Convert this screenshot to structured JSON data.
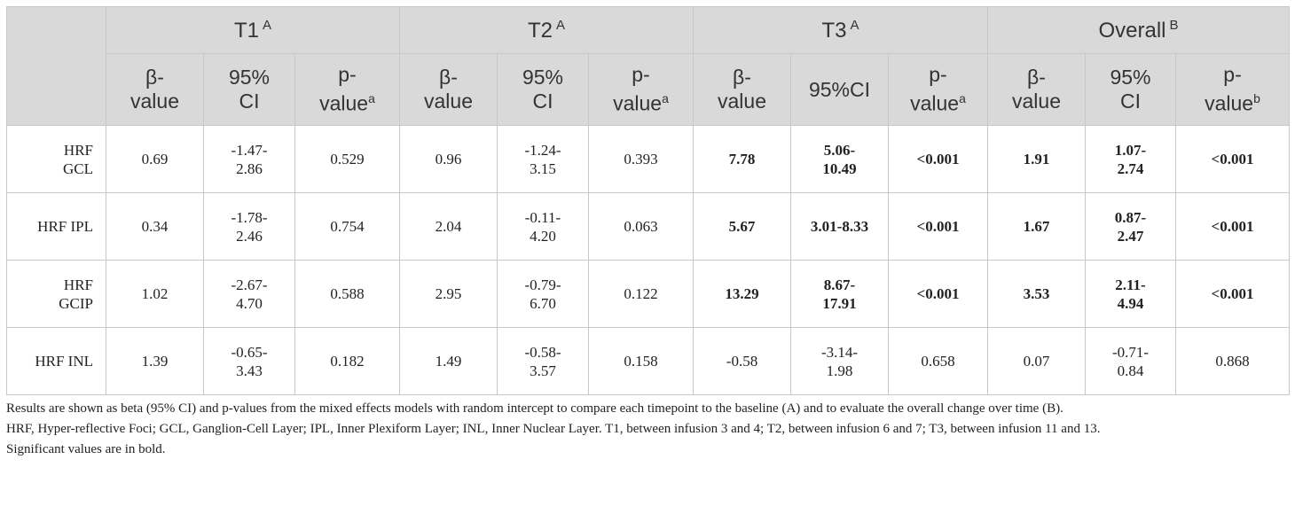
{
  "groups": [
    {
      "label": "T1",
      "sup": "A"
    },
    {
      "label": "T2",
      "sup": "A"
    },
    {
      "label": "T3",
      "sup": "A"
    },
    {
      "label": "Overall",
      "sup": "B"
    }
  ],
  "subheaders": [
    {
      "l1": "β-",
      "l2": "value",
      "sup": ""
    },
    {
      "l1": "95%",
      "l2": "CI",
      "sup": ""
    },
    {
      "l1": "p-",
      "l2": "value",
      "sup": "a"
    },
    {
      "l1": "β-",
      "l2": "value",
      "sup": ""
    },
    {
      "l1": "95%",
      "l2": "CI",
      "sup": ""
    },
    {
      "l1": "p-",
      "l2": "value",
      "sup": "a"
    },
    {
      "l1": "β-",
      "l2": "value",
      "sup": ""
    },
    {
      "l1": "95%CI",
      "l2": "",
      "sup": ""
    },
    {
      "l1": "p-",
      "l2": "value",
      "sup": "a"
    },
    {
      "l1": "β-",
      "l2": "value",
      "sup": ""
    },
    {
      "l1": "95%",
      "l2": "CI",
      "sup": ""
    },
    {
      "l1": "p-",
      "l2": "value",
      "sup": "b"
    }
  ],
  "rows": [
    {
      "label": [
        "HRF",
        "GCL"
      ],
      "cells": [
        {
          "v": [
            "0.69"
          ],
          "b": false
        },
        {
          "v": [
            "-1.47-",
            "2.86"
          ],
          "b": false
        },
        {
          "v": [
            "0.529"
          ],
          "b": false
        },
        {
          "v": [
            "0.96"
          ],
          "b": false
        },
        {
          "v": [
            "-1.24-",
            "3.15"
          ],
          "b": false
        },
        {
          "v": [
            "0.393"
          ],
          "b": false
        },
        {
          "v": [
            "7.78"
          ],
          "b": true
        },
        {
          "v": [
            "5.06-",
            "10.49"
          ],
          "b": true
        },
        {
          "v": [
            "<0.001"
          ],
          "b": true
        },
        {
          "v": [
            "1.91"
          ],
          "b": true
        },
        {
          "v": [
            "1.07-",
            "2.74"
          ],
          "b": true
        },
        {
          "v": [
            "<0.001"
          ],
          "b": true
        }
      ]
    },
    {
      "label": [
        "HRF IPL"
      ],
      "cells": [
        {
          "v": [
            "0.34"
          ],
          "b": false
        },
        {
          "v": [
            "-1.78-",
            "2.46"
          ],
          "b": false
        },
        {
          "v": [
            "0.754"
          ],
          "b": false
        },
        {
          "v": [
            "2.04"
          ],
          "b": false
        },
        {
          "v": [
            "-0.11-",
            "4.20"
          ],
          "b": false
        },
        {
          "v": [
            "0.063"
          ],
          "b": false
        },
        {
          "v": [
            "5.67"
          ],
          "b": true
        },
        {
          "v": [
            "3.01-8.33"
          ],
          "b": true
        },
        {
          "v": [
            "<0.001"
          ],
          "b": true
        },
        {
          "v": [
            "1.67"
          ],
          "b": true
        },
        {
          "v": [
            "0.87-",
            "2.47"
          ],
          "b": true
        },
        {
          "v": [
            "<0.001"
          ],
          "b": true
        }
      ]
    },
    {
      "label": [
        "HRF",
        "GCIP"
      ],
      "cells": [
        {
          "v": [
            "1.02"
          ],
          "b": false
        },
        {
          "v": [
            "-2.67-",
            "4.70"
          ],
          "b": false
        },
        {
          "v": [
            "0.588"
          ],
          "b": false
        },
        {
          "v": [
            "2.95"
          ],
          "b": false
        },
        {
          "v": [
            "-0.79-",
            "6.70"
          ],
          "b": false
        },
        {
          "v": [
            "0.122"
          ],
          "b": false
        },
        {
          "v": [
            "13.29"
          ],
          "b": true
        },
        {
          "v": [
            "8.67-",
            "17.91"
          ],
          "b": true
        },
        {
          "v": [
            "<0.001"
          ],
          "b": true
        },
        {
          "v": [
            "3.53"
          ],
          "b": true
        },
        {
          "v": [
            "2.11-",
            "4.94"
          ],
          "b": true
        },
        {
          "v": [
            "<0.001"
          ],
          "b": true
        }
      ]
    },
    {
      "label": [
        "HRF INL"
      ],
      "cells": [
        {
          "v": [
            "1.39"
          ],
          "b": false
        },
        {
          "v": [
            "-0.65-",
            "3.43"
          ],
          "b": false
        },
        {
          "v": [
            "0.182"
          ],
          "b": false
        },
        {
          "v": [
            "1.49"
          ],
          "b": false
        },
        {
          "v": [
            "-0.58-",
            "3.57"
          ],
          "b": false
        },
        {
          "v": [
            "0.158"
          ],
          "b": false
        },
        {
          "v": [
            "-0.58"
          ],
          "b": false
        },
        {
          "v": [
            "-3.14-",
            "1.98"
          ],
          "b": false
        },
        {
          "v": [
            "0.658"
          ],
          "b": false
        },
        {
          "v": [
            "0.07"
          ],
          "b": false
        },
        {
          "v": [
            "-0.71-",
            "0.84"
          ],
          "b": false
        },
        {
          "v": [
            "0.868"
          ],
          "b": false
        }
      ]
    }
  ],
  "notes": [
    "Results are shown as beta (95% CI) and p-values from the mixed effects models with random intercept to compare each timepoint to the baseline (A) and to evaluate the overall change over time (B).",
    "HRF, Hyper-reflective Foci; GCL, Ganglion-Cell Layer; IPL, Inner Plexiform Layer; INL, Inner Nuclear Layer. T1, between infusion 3 and 4; T2, between infusion 6 and 7; T3, between infusion 11 and 13.",
    "Significant values are in bold."
  ],
  "colors": {
    "header_bg": "#d9d9d9",
    "header_text": "#333333",
    "border": "#c8c8c8",
    "text": "#222222"
  }
}
